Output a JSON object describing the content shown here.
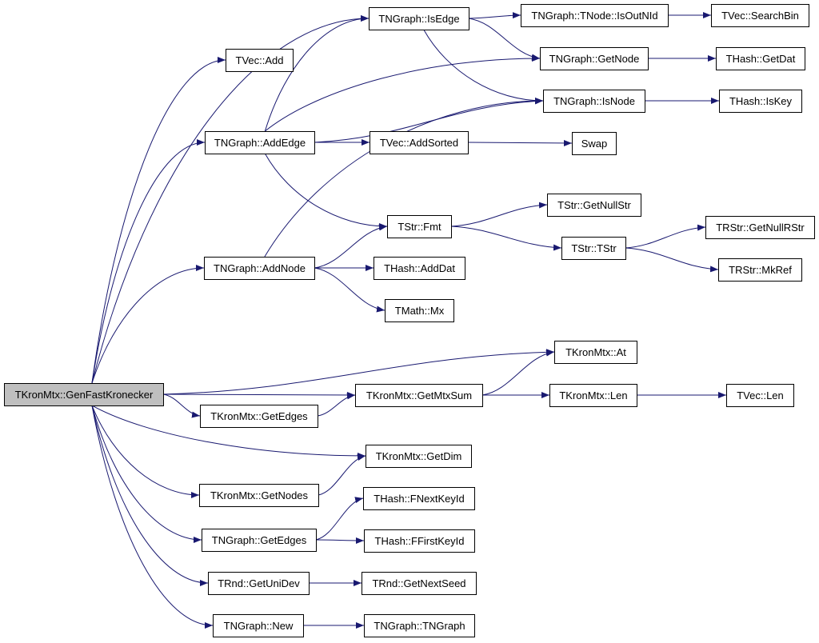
{
  "diagram": {
    "type": "call-graph",
    "edge_color": "#191970",
    "root_fill": "#bfbfbf",
    "nodes": [
      {
        "id": "root",
        "label": "TKronMtx::GenFastKronecker",
        "root": true
      },
      {
        "id": "vadd",
        "label": "TVec::Add"
      },
      {
        "id": "addedge",
        "label": "TNGraph::AddEdge"
      },
      {
        "id": "addnode",
        "label": "TNGraph::AddNode"
      },
      {
        "id": "isedge",
        "label": "TNGraph::IsEdge"
      },
      {
        "id": "addsorted",
        "label": "TVec::AddSorted"
      },
      {
        "id": "fmt",
        "label": "TStr::Fmt"
      },
      {
        "id": "adddat",
        "label": "THash::AddDat"
      },
      {
        "id": "mx",
        "label": "TMath::Mx"
      },
      {
        "id": "isoutnid",
        "label": "TNGraph::TNode::IsOutNId"
      },
      {
        "id": "searchbin",
        "label": "TVec::SearchBin"
      },
      {
        "id": "getnode",
        "label": "TNGraph::GetNode"
      },
      {
        "id": "getdat",
        "label": "THash::GetDat"
      },
      {
        "id": "isnode",
        "label": "TNGraph::IsNode"
      },
      {
        "id": "iskey",
        "label": "THash::IsKey"
      },
      {
        "id": "swap",
        "label": "Swap"
      },
      {
        "id": "getnullstr",
        "label": "TStr::GetNullStr"
      },
      {
        "id": "tstr",
        "label": "TStr::TStr"
      },
      {
        "id": "getnullrstr",
        "label": "TRStr::GetNullRStr"
      },
      {
        "id": "mkref",
        "label": "TRStr::MkRef"
      },
      {
        "id": "at",
        "label": "TKronMtx::At"
      },
      {
        "id": "getmtxsum",
        "label": "TKronMtx::GetMtxSum"
      },
      {
        "id": "klen",
        "label": "TKronMtx::Len"
      },
      {
        "id": "vlen",
        "label": "TVec::Len"
      },
      {
        "id": "kgetedges",
        "label": "TKronMtx::GetEdges"
      },
      {
        "id": "getdim",
        "label": "TKronMtx::GetDim"
      },
      {
        "id": "kgetnodes",
        "label": "TKronMtx::GetNodes"
      },
      {
        "id": "fnextkeyid",
        "label": "THash::FNextKeyId"
      },
      {
        "id": "ggetedges",
        "label": "TNGraph::GetEdges"
      },
      {
        "id": "ffirstkeyid",
        "label": "THash::FFirstKeyId"
      },
      {
        "id": "getunidev",
        "label": "TRnd::GetUniDev"
      },
      {
        "id": "getnextseed",
        "label": "TRnd::GetNextSeed"
      },
      {
        "id": "new",
        "label": "TNGraph::New"
      },
      {
        "id": "tngraph",
        "label": "TNGraph::TNGraph"
      }
    ],
    "edges": [
      [
        "root",
        "vadd"
      ],
      [
        "root",
        "isedge"
      ],
      [
        "root",
        "addedge"
      ],
      [
        "root",
        "addnode"
      ],
      [
        "root",
        "at"
      ],
      [
        "root",
        "getmtxsum"
      ],
      [
        "root",
        "kgetedges"
      ],
      [
        "root",
        "getdim"
      ],
      [
        "root",
        "kgetnodes"
      ],
      [
        "root",
        "ggetedges"
      ],
      [
        "root",
        "getunidev"
      ],
      [
        "root",
        "new"
      ],
      [
        "addedge",
        "isedge"
      ],
      [
        "addedge",
        "getnode"
      ],
      [
        "addedge",
        "isnode"
      ],
      [
        "addedge",
        "addsorted"
      ],
      [
        "addedge",
        "fmt"
      ],
      [
        "addnode",
        "isnode"
      ],
      [
        "addnode",
        "fmt"
      ],
      [
        "addnode",
        "adddat"
      ],
      [
        "addnode",
        "mx"
      ],
      [
        "isedge",
        "isoutnid"
      ],
      [
        "isedge",
        "getnode"
      ],
      [
        "isedge",
        "isnode"
      ],
      [
        "isoutnid",
        "searchbin"
      ],
      [
        "getnode",
        "getdat"
      ],
      [
        "isnode",
        "iskey"
      ],
      [
        "addsorted",
        "swap"
      ],
      [
        "fmt",
        "getnullstr"
      ],
      [
        "fmt",
        "tstr"
      ],
      [
        "tstr",
        "getnullrstr"
      ],
      [
        "tstr",
        "mkref"
      ],
      [
        "getmtxsum",
        "at"
      ],
      [
        "getmtxsum",
        "klen"
      ],
      [
        "klen",
        "vlen"
      ],
      [
        "kgetedges",
        "getmtxsum"
      ],
      [
        "kgetnodes",
        "getdim"
      ],
      [
        "ggetedges",
        "fnextkeyid"
      ],
      [
        "ggetedges",
        "ffirstkeyid"
      ],
      [
        "getunidev",
        "getnextseed"
      ],
      [
        "new",
        "tngraph"
      ]
    ]
  }
}
